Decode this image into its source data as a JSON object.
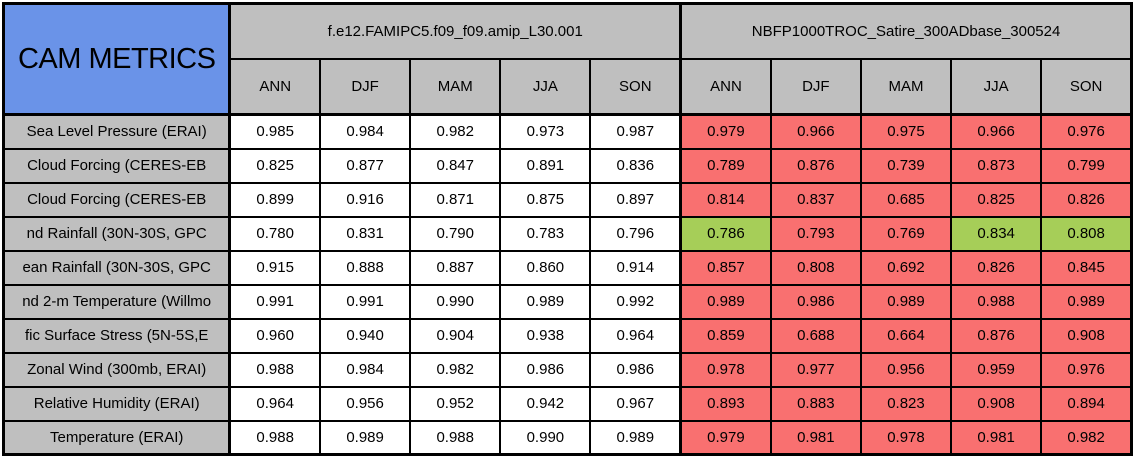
{
  "colors": {
    "title_blue": "#6A93E8",
    "header_gray": "#BFBFBF",
    "cell_white": "#FFFFFF",
    "worse_red": "#F97070",
    "better_green": "#A6CE58",
    "border_black": "#000000"
  },
  "chart_data": {
    "type": "table",
    "title": "CAM METRICS",
    "column_groups": [
      {
        "label": "f.e12.FAMIPC5.f09_f09.amip_L30.001",
        "seasons": [
          "ANN",
          "DJF",
          "MAM",
          "JJA",
          "SON"
        ]
      },
      {
        "label": "NBFP1000TROC_Satire_300ADbase_300524",
        "seasons": [
          "ANN",
          "DJF",
          "MAM",
          "JJA",
          "SON"
        ]
      }
    ],
    "rows": [
      {
        "label": "Sea Level Pressure (ERAI)",
        "group1_values": [
          "0.985",
          "0.984",
          "0.982",
          "0.973",
          "0.987"
        ],
        "group2_values": [
          "0.979",
          "0.966",
          "0.975",
          "0.966",
          "0.976"
        ],
        "group2_cell_colors": [
          "red",
          "red",
          "red",
          "red",
          "red"
        ]
      },
      {
        "label": "Cloud Forcing (CERES-EB",
        "group1_values": [
          "0.825",
          "0.877",
          "0.847",
          "0.891",
          "0.836"
        ],
        "group2_values": [
          "0.789",
          "0.876",
          "0.739",
          "0.873",
          "0.799"
        ],
        "group2_cell_colors": [
          "red",
          "red",
          "red",
          "red",
          "red"
        ]
      },
      {
        "label": "Cloud Forcing (CERES-EB",
        "group1_values": [
          "0.899",
          "0.916",
          "0.871",
          "0.875",
          "0.897"
        ],
        "group2_values": [
          "0.814",
          "0.837",
          "0.685",
          "0.825",
          "0.826"
        ],
        "group2_cell_colors": [
          "red",
          "red",
          "red",
          "red",
          "red"
        ]
      },
      {
        "label": "nd Rainfall (30N-30S, GPC",
        "group1_values": [
          "0.780",
          "0.831",
          "0.790",
          "0.783",
          "0.796"
        ],
        "group2_values": [
          "0.786",
          "0.793",
          "0.769",
          "0.834",
          "0.808"
        ],
        "group2_cell_colors": [
          "green",
          "red",
          "red",
          "green",
          "green"
        ]
      },
      {
        "label": "ean Rainfall (30N-30S, GPC",
        "group1_values": [
          "0.915",
          "0.888",
          "0.887",
          "0.860",
          "0.914"
        ],
        "group2_values": [
          "0.857",
          "0.808",
          "0.692",
          "0.826",
          "0.845"
        ],
        "group2_cell_colors": [
          "red",
          "red",
          "red",
          "red",
          "red"
        ]
      },
      {
        "label": "nd 2-m Temperature (Willmo",
        "group1_values": [
          "0.991",
          "0.991",
          "0.990",
          "0.989",
          "0.992"
        ],
        "group2_values": [
          "0.989",
          "0.986",
          "0.989",
          "0.988",
          "0.989"
        ],
        "group2_cell_colors": [
          "red",
          "red",
          "red",
          "red",
          "red"
        ]
      },
      {
        "label": "fic Surface Stress (5N-5S,E",
        "group1_values": [
          "0.960",
          "0.940",
          "0.904",
          "0.938",
          "0.964"
        ],
        "group2_values": [
          "0.859",
          "0.688",
          "0.664",
          "0.876",
          "0.908"
        ],
        "group2_cell_colors": [
          "red",
          "red",
          "red",
          "red",
          "red"
        ]
      },
      {
        "label": "Zonal Wind (300mb, ERAI)",
        "group1_values": [
          "0.988",
          "0.984",
          "0.982",
          "0.986",
          "0.986"
        ],
        "group2_values": [
          "0.978",
          "0.977",
          "0.956",
          "0.959",
          "0.976"
        ],
        "group2_cell_colors": [
          "red",
          "red",
          "red",
          "red",
          "red"
        ]
      },
      {
        "label": "Relative Humidity (ERAI)",
        "group1_values": [
          "0.964",
          "0.956",
          "0.952",
          "0.942",
          "0.967"
        ],
        "group2_values": [
          "0.893",
          "0.883",
          "0.823",
          "0.908",
          "0.894"
        ],
        "group2_cell_colors": [
          "red",
          "red",
          "red",
          "red",
          "red"
        ]
      },
      {
        "label": "Temperature (ERAI)",
        "group1_values": [
          "0.988",
          "0.989",
          "0.988",
          "0.990",
          "0.989"
        ],
        "group2_values": [
          "0.979",
          "0.981",
          "0.978",
          "0.981",
          "0.982"
        ],
        "group2_cell_colors": [
          "red",
          "red",
          "red",
          "red",
          "red"
        ]
      }
    ]
  }
}
